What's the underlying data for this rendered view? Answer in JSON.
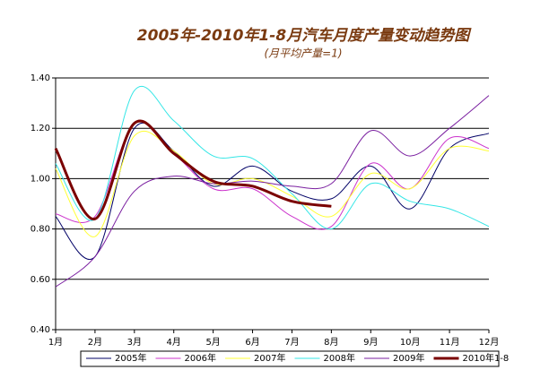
{
  "chart_data": {
    "type": "line",
    "title": "2005年-2010年1-8月汽车月度产量变动趋势图",
    "subtitle": "(月平均产量=1)",
    "categories": [
      "1月",
      "2月",
      "3月",
      "4月",
      "5月",
      "6月",
      "7月",
      "8月",
      "9月",
      "10月",
      "11月",
      "12月"
    ],
    "ylim": [
      0.4,
      1.4
    ],
    "yticks": [
      {
        "value": 0.4,
        "label": "0.40"
      },
      {
        "value": 0.6,
        "label": "0.60"
      },
      {
        "value": 0.8,
        "label": "0.80"
      },
      {
        "value": 1.0,
        "label": "1.00"
      },
      {
        "value": 1.2,
        "label": "1.20"
      },
      {
        "value": 1.4,
        "label": "1.40"
      }
    ],
    "grid": true,
    "legend": "bottom",
    "series": [
      {
        "name": "2005年",
        "color": "#000066",
        "values": [
          0.85,
          0.69,
          1.2,
          1.11,
          0.97,
          1.05,
          0.95,
          0.92,
          1.05,
          0.88,
          1.12,
          1.18
        ]
      },
      {
        "name": "2006年",
        "color": "#cc33cc",
        "values": [
          0.86,
          0.85,
          1.22,
          1.1,
          0.96,
          0.96,
          0.85,
          0.81,
          1.06,
          0.96,
          1.16,
          1.12
        ]
      },
      {
        "name": "2007年",
        "color": "#ffff33",
        "values": [
          1.04,
          0.77,
          1.17,
          1.11,
          0.98,
          1.0,
          0.93,
          0.85,
          1.02,
          0.96,
          1.12,
          1.11
        ]
      },
      {
        "name": "2008年",
        "color": "#33e6e6",
        "values": [
          1.06,
          0.84,
          1.35,
          1.23,
          1.09,
          1.08,
          0.94,
          0.8,
          0.98,
          0.91,
          0.88,
          0.81
        ]
      },
      {
        "name": "2009年",
        "color": "#7a1fa0",
        "values": [
          0.57,
          0.69,
          0.95,
          1.01,
          0.98,
          0.99,
          0.97,
          0.98,
          1.19,
          1.09,
          1.2,
          1.33
        ]
      },
      {
        "name": "2010年1-8",
        "color": "#7a0000",
        "width": 3,
        "values": [
          1.12,
          0.84,
          1.22,
          1.1,
          0.99,
          0.97,
          0.91,
          0.89,
          null,
          null,
          null,
          null
        ]
      }
    ]
  }
}
